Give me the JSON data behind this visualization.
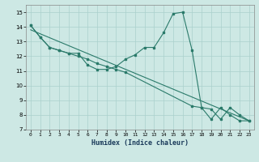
{
  "title": "",
  "xlabel": "Humidex (Indice chaleur)",
  "xlim": [
    -0.5,
    23.5
  ],
  "ylim": [
    7,
    15.5
  ],
  "yticks": [
    7,
    8,
    9,
    10,
    11,
    12,
    13,
    14,
    15
  ],
  "xticks": [
    0,
    1,
    2,
    3,
    4,
    5,
    6,
    7,
    8,
    9,
    10,
    11,
    12,
    13,
    14,
    15,
    16,
    17,
    18,
    19,
    20,
    21,
    22,
    23
  ],
  "background_color": "#cde8e4",
  "grid_color": "#aad0cc",
  "line_color": "#2a7a6a",
  "line1_x": [
    0,
    1,
    2,
    3,
    4,
    5,
    6,
    7,
    8,
    9,
    10,
    11,
    12,
    13,
    14,
    15,
    16,
    17,
    18,
    19,
    20,
    21,
    22,
    23
  ],
  "line1_y": [
    14.1,
    13.3,
    12.6,
    12.4,
    12.2,
    12.2,
    11.4,
    11.1,
    11.1,
    11.3,
    11.8,
    12.1,
    12.6,
    12.6,
    13.6,
    14.9,
    15.0,
    12.4,
    8.5,
    8.4,
    7.7,
    8.5,
    8.0,
    7.6
  ],
  "line2_x": [
    0,
    1,
    2,
    3,
    4,
    5,
    6,
    7,
    8,
    9,
    10,
    17,
    18,
    19,
    20,
    21,
    22,
    23
  ],
  "line2_y": [
    14.1,
    13.3,
    12.6,
    12.4,
    12.2,
    12.0,
    11.8,
    11.5,
    11.3,
    11.1,
    10.9,
    8.6,
    8.5,
    7.7,
    8.5,
    8.0,
    7.6,
    7.6
  ],
  "line3_x": [
    0,
    23
  ],
  "line3_y": [
    13.8,
    7.6
  ]
}
